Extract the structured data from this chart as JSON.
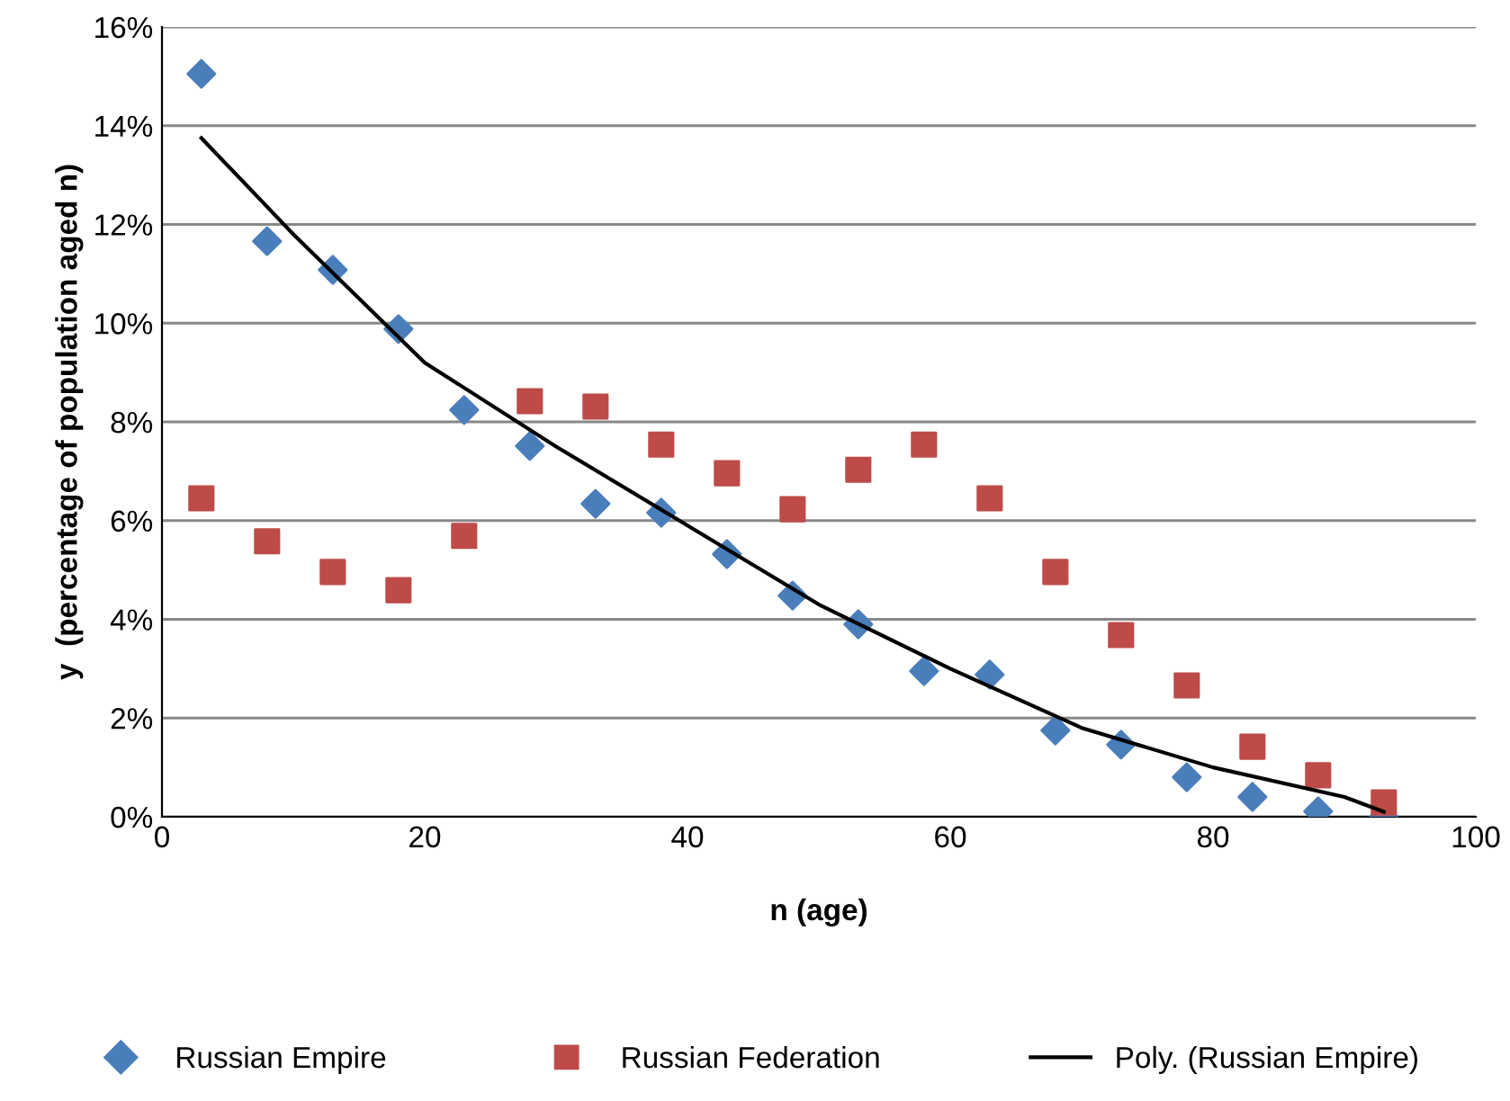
{
  "chart_data": {
    "type": "scatter",
    "xlabel": "n (age)",
    "ylabel": "y  (percentage of population aged n)",
    "xlim": [
      0,
      100
    ],
    "xticks": [
      0,
      20,
      40,
      60,
      80,
      100
    ],
    "ylim": [
      0,
      16
    ],
    "yticks": [
      {
        "value": 0,
        "label": "0%"
      },
      {
        "value": 2,
        "label": "2%"
      },
      {
        "value": 4,
        "label": "4%"
      },
      {
        "value": 6,
        "label": "6%"
      },
      {
        "value": 8,
        "label": "8%"
      },
      {
        "value": 10,
        "label": "10%"
      },
      {
        "value": 12,
        "label": "12%"
      },
      {
        "value": 14,
        "label": "14%"
      },
      {
        "value": 16,
        "label": "16%"
      }
    ],
    "grid": "y",
    "legend": "bottom",
    "series": [
      {
        "name": "Russian Empire",
        "color": "#4a7ebb",
        "marker": "diamond",
        "x": [
          3,
          8,
          13,
          18,
          23,
          28,
          33,
          38,
          43,
          48,
          53,
          58,
          63,
          68,
          73,
          78,
          83,
          88,
          93
        ],
        "values": [
          15.05,
          11.66,
          11.08,
          9.88,
          8.24,
          7.51,
          6.34,
          6.16,
          5.32,
          4.48,
          3.9,
          2.95,
          2.88,
          1.75,
          1.46,
          0.8,
          0.4,
          0.11,
          0.0
        ]
      },
      {
        "name": "Russian Federation",
        "color": "#be4b48",
        "marker": "square",
        "x": [
          3,
          8,
          13,
          18,
          23,
          28,
          33,
          38,
          43,
          48,
          53,
          58,
          63,
          68,
          73,
          78,
          83,
          88,
          93
        ],
        "values": [
          6.45,
          5.58,
          4.96,
          4.59,
          5.69,
          8.42,
          8.31,
          7.54,
          6.96,
          6.23,
          7.03,
          7.54,
          6.45,
          4.96,
          3.68,
          2.66,
          1.42,
          0.84,
          0.29
        ]
      },
      {
        "name": "Poly. (Russian Empire)",
        "type": "line",
        "color": "#000000",
        "marker": "none",
        "line_style": "solid",
        "x": [
          3,
          10,
          20,
          30,
          40,
          50,
          60,
          70,
          80,
          90,
          93
        ],
        "values": [
          13.75,
          11.8,
          9.2,
          7.5,
          5.9,
          4.3,
          3.0,
          1.8,
          1.0,
          0.4,
          0.1
        ]
      }
    ]
  }
}
